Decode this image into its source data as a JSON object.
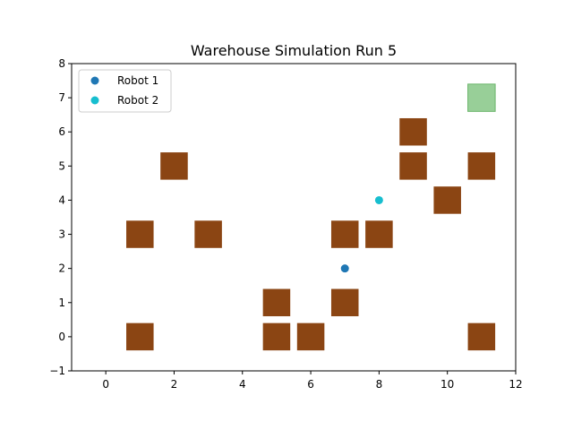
{
  "chart_data": {
    "type": "scatter",
    "title": "Warehouse Simulation Run 5",
    "xlabel": "",
    "ylabel": "",
    "xlim": [
      -1,
      12
    ],
    "ylim": [
      -1,
      8
    ],
    "xticks": [
      0,
      2,
      4,
      6,
      8,
      10,
      12
    ],
    "yticks": [
      -1,
      0,
      1,
      2,
      3,
      4,
      5,
      6,
      7,
      8
    ],
    "grid": false,
    "legend_position": "top-left",
    "colors": {
      "obstacle": "#8b4513",
      "goal": "#98cf98",
      "goal_edge": "#6bb56b",
      "robot1": "#1f77b4",
      "robot2": "#17becf"
    },
    "obstacles": [
      {
        "x": 1,
        "y": 0
      },
      {
        "x": 1,
        "y": 3
      },
      {
        "x": 2,
        "y": 5
      },
      {
        "x": 3,
        "y": 3
      },
      {
        "x": 5,
        "y": 0
      },
      {
        "x": 5,
        "y": 1
      },
      {
        "x": 6,
        "y": 0
      },
      {
        "x": 7,
        "y": 1
      },
      {
        "x": 7,
        "y": 3
      },
      {
        "x": 8,
        "y": 3
      },
      {
        "x": 9,
        "y": 5
      },
      {
        "x": 9,
        "y": 6
      },
      {
        "x": 10,
        "y": 4
      },
      {
        "x": 11,
        "y": 5
      },
      {
        "x": 11,
        "y": 0
      }
    ],
    "goal": {
      "x": 11,
      "y": 7
    },
    "series": [
      {
        "name": "Robot 1",
        "points": [
          {
            "x": 7,
            "y": 2
          }
        ]
      },
      {
        "name": "Robot 2",
        "points": [
          {
            "x": 8,
            "y": 4
          }
        ]
      }
    ]
  }
}
